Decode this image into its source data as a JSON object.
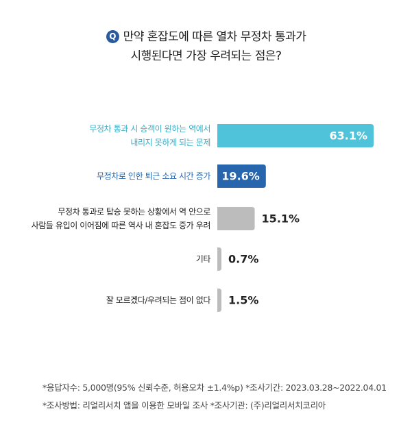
{
  "question": {
    "badge": "Q",
    "line1": "만약 혼잡도에 따른 열차 무정차 통과가",
    "line2": "시행된다면 가장 우려되는 점은?"
  },
  "chart_data": {
    "type": "bar",
    "orientation": "horizontal",
    "categories": [
      [
        "무정차 통과 시 승객이 원하는 역에서",
        "내리지 못하게 되는 문제"
      ],
      [
        "무정차로 인한 퇴근 소요 시간 증가"
      ],
      [
        "무정차 통과로 탑승 못하는 상황에서 역 안으로",
        "사람들 유입이 이어짐에 따른 역사 내 혼잡도 증가 우려"
      ],
      [
        "기타"
      ],
      [
        "잘 모르겠다/우려되는 점이 없다"
      ]
    ],
    "values": [
      63.1,
      19.6,
      15.1,
      0.7,
      1.5
    ],
    "value_labels": [
      "63.1%",
      "19.6%",
      "15.1%",
      "0.7%",
      "1.5%"
    ],
    "colors": [
      "#4fc3d9",
      "#2766ad",
      "#bcbcbc",
      "#bcbcbc",
      "#bcbcbc"
    ],
    "label_colors": [
      "#3aaec6",
      "#2766ad",
      "#222222",
      "#222222",
      "#222222"
    ],
    "value_inside": [
      true,
      true,
      false,
      false,
      false
    ],
    "xlim": [
      0,
      63.1
    ]
  },
  "footer": {
    "line1": "*응답자수: 5,000명(95% 신뢰수준, 허용오차 ±1.4%p)  *조사기간: 2023.03.28~2022.04.01",
    "line2": "*조사방법: 리얼리서치 앱을 이용한 모바일 조사  *조사기관: (주)리얼리서치코리아"
  }
}
